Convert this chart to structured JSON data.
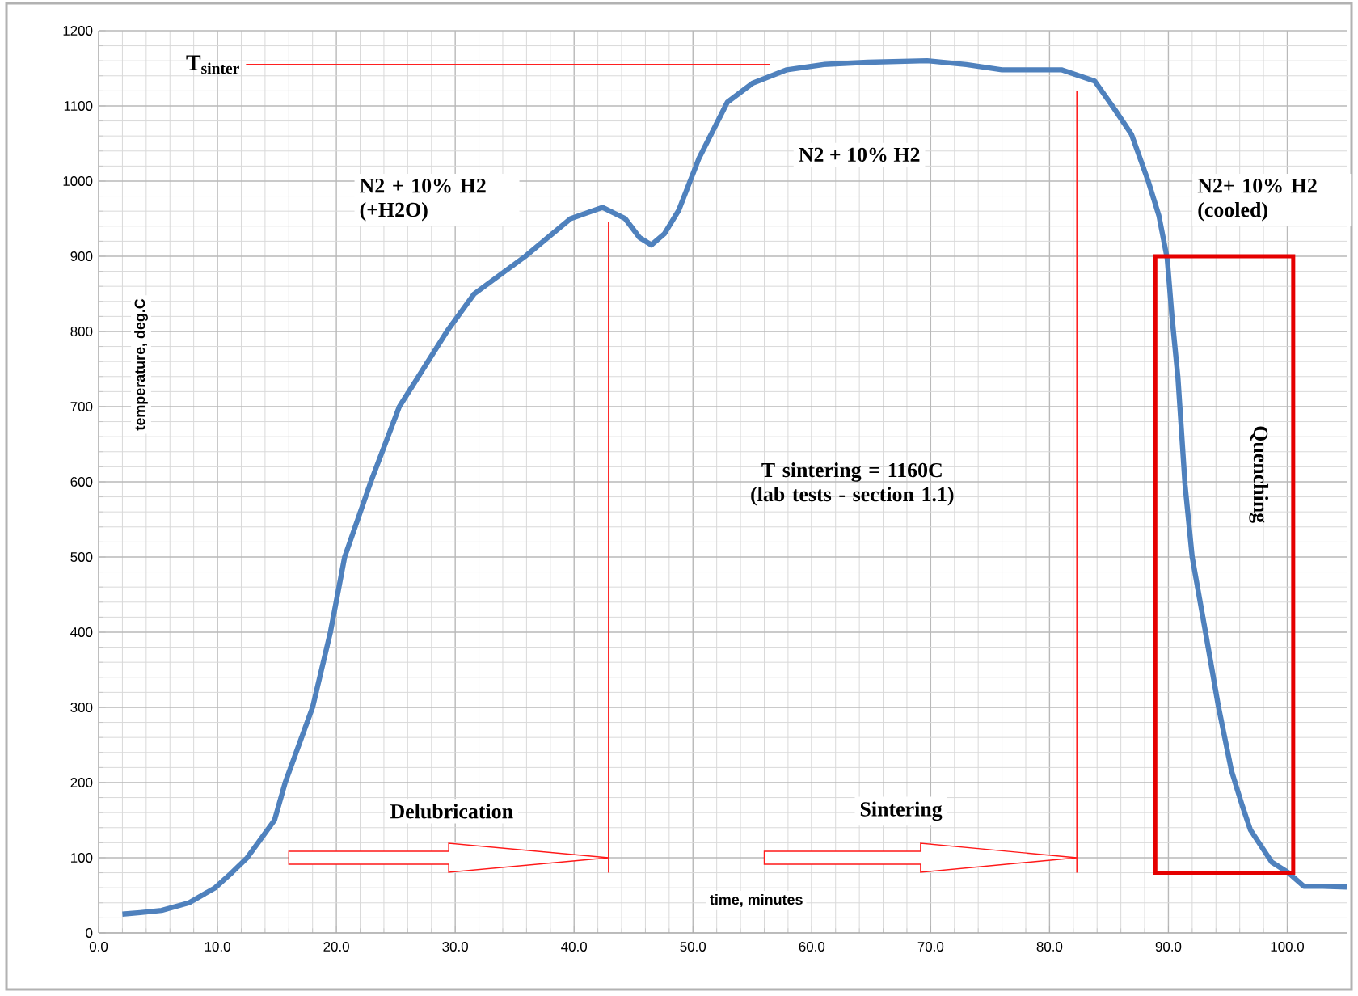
{
  "chart_data": {
    "type": "line",
    "xlabel": "time, minutes",
    "ylabel": "temperature, deg.C",
    "xlim": [
      0,
      105
    ],
    "ylim": [
      0,
      1200
    ],
    "xticks": [
      {
        "value": 0,
        "label": "0.0"
      },
      {
        "value": 10,
        "label": "10.0"
      },
      {
        "value": 20,
        "label": "20.0"
      },
      {
        "value": 30,
        "label": "30.0"
      },
      {
        "value": 40,
        "label": "40.0"
      },
      {
        "value": 50,
        "label": "50.0"
      },
      {
        "value": 60,
        "label": "60.0"
      },
      {
        "value": 70,
        "label": "70.0"
      },
      {
        "value": 80,
        "label": "80.0"
      },
      {
        "value": 90,
        "label": "90.0"
      },
      {
        "value": 100,
        "label": "100.0"
      }
    ],
    "yticks": [
      0,
      100,
      200,
      300,
      400,
      500,
      600,
      700,
      800,
      900,
      1000,
      1100,
      1200
    ],
    "grid": true,
    "marker": "none",
    "line_style": "solid",
    "series": [
      {
        "color": "#4f81bd",
        "x": [
          2.0,
          3.5,
          5.3,
          7.6,
          9.8,
          11.2,
          12.5,
          14.8,
          15.7,
          18.0,
          19.5,
          20.7,
          22.9,
          25.3,
          29.3,
          31.6,
          35.9,
          39.7,
          42.4,
          44.3,
          45.5,
          46.5,
          47.6,
          48.8,
          50.5,
          52.9,
          55.0,
          57.9,
          61.0,
          64.7,
          69.7,
          73.0,
          76.0,
          81.0,
          83.8,
          85.5,
          86.9,
          88.3,
          89.2,
          89.9,
          90.3,
          90.8,
          91.4,
          92.0,
          93.1,
          94.2,
          95.3,
          96.2,
          96.9,
          98.7,
          100.1,
          101.4,
          103.0,
          105.0
        ],
        "values": [
          25,
          27,
          30,
          40,
          60,
          80,
          100,
          150,
          200,
          300,
          400,
          500,
          600,
          700,
          800,
          850,
          900,
          950,
          965,
          950,
          925,
          915,
          930,
          961,
          1030,
          1105,
          1130,
          1148,
          1155,
          1158,
          1160,
          1155,
          1148,
          1148,
          1133,
          1095,
          1062,
          1000,
          954,
          897,
          820,
          739,
          596,
          500,
          402,
          302,
          216,
          170,
          137,
          94,
          80,
          62,
          62,
          61
        ]
      },
      {
        "name": "T$_{sinter}$",
        "color": "#ff2020",
        "x": [
          12.4,
          56.5
        ],
        "values": [
          1155,
          1155
        ]
      },
      {
        "color": "#ff2020",
        "x": [
          42.9,
          42.9
        ],
        "values": [
          80,
          945
        ]
      },
      {
        "color": "#ff2020",
        "x": [
          82.3,
          82.3
        ],
        "values": [
          80,
          1120
        ]
      }
    ],
    "annotations": [
      "N2 + 10% H2 (+H2O)",
      "N2 + 10% H2",
      "N2+ 10% H2 (cooled)",
      "T sintering = 1160C (lab tests - section 1.1)",
      "Quenching",
      "Delubrication",
      "Sintering"
    ]
  }
}
